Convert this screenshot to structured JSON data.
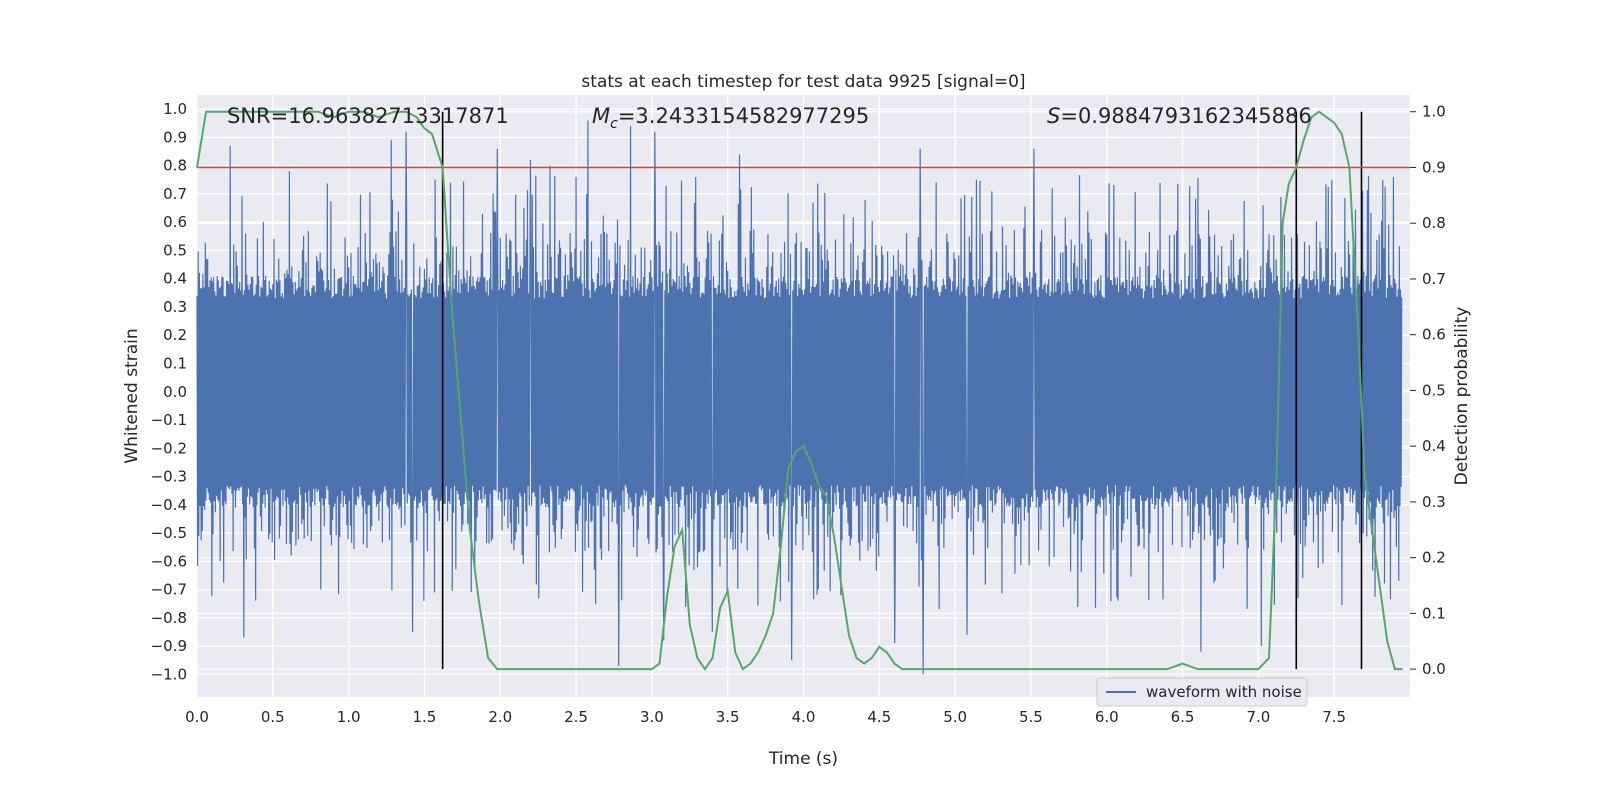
{
  "chart_data": {
    "type": "line",
    "title": "stats at each timestep for test data 9925 [signal=0]",
    "xlabel": "Time (s)",
    "ylabel_left": "Whitened strain",
    "ylabel_right": "Detection probability",
    "xlim": [
      0.0,
      8.0
    ],
    "ylim_left": [
      -1.08,
      1.05
    ],
    "ylim_right": [
      -0.05,
      1.03
    ],
    "x_ticks": [
      0.0,
      0.5,
      1.0,
      1.5,
      2.0,
      2.5,
      3.0,
      3.5,
      4.0,
      4.5,
      5.0,
      5.5,
      6.0,
      6.5,
      7.0,
      7.5
    ],
    "x_tick_labels": [
      "0.0",
      "0.5",
      "1.0",
      "1.5",
      "2.0",
      "2.5",
      "3.0",
      "3.5",
      "4.0",
      "4.5",
      "5.0",
      "5.5",
      "6.0",
      "6.5",
      "7.0",
      "7.5"
    ],
    "y_left_ticks": [
      1.0,
      0.9,
      0.8,
      0.7,
      0.6,
      0.5,
      0.4,
      0.3,
      0.2,
      0.1,
      0.0,
      -0.1,
      -0.2,
      -0.3,
      -0.4,
      -0.5,
      -0.6,
      -0.7,
      -0.8,
      -0.9,
      -1.0
    ],
    "y_left_tick_labels": [
      "1.0",
      "0.9",
      "0.8",
      "0.7",
      "0.6",
      "0.5",
      "0.4",
      "0.3",
      "0.2",
      "0.1",
      "0.0",
      "−0.1",
      "−0.2",
      "−0.3",
      "−0.4",
      "−0.5",
      "−0.6",
      "−0.7",
      "−0.8",
      "−0.9",
      "−1.0"
    ],
    "y_right_ticks": [
      1.0,
      0.9,
      0.8,
      0.7,
      0.6,
      0.5,
      0.4,
      0.3,
      0.2,
      0.1,
      0.0
    ],
    "y_right_tick_labels": [
      "1.0",
      "0.9",
      "0.8",
      "0.7",
      "0.6",
      "0.5",
      "0.4",
      "0.3",
      "0.2",
      "0.1",
      "0.0"
    ],
    "annotations": {
      "snr": "SNR=16.96382713317871",
      "mc_symbol": "M",
      "mc_sub": "c",
      "mc_value": "=3.2433154582977295",
      "s_symbol": "S",
      "s_value": "=0.9884793162345886"
    },
    "legend": {
      "label": "waveform with noise",
      "position": "lower-right"
    },
    "threshold": {
      "value": 0.9,
      "axis": "right",
      "color": "#c44e52"
    },
    "detection_boundaries_s": [
      1.62,
      7.25,
      7.68
    ],
    "strain_series": {
      "name": "waveform with noise",
      "color": "#4c72b0",
      "sample_rate_hz": 256,
      "core_amplitude": 0.36,
      "spike_peaks": [
        {
          "t": 0.22,
          "v": 0.87
        },
        {
          "t": 0.31,
          "v": -0.87
        },
        {
          "t": 0.61,
          "v": 0.78
        },
        {
          "t": 1.38,
          "v": 0.92
        },
        {
          "t": 1.42,
          "v": -0.85
        },
        {
          "t": 2.2,
          "v": 0.82
        },
        {
          "t": 2.33,
          "v": 0.8
        },
        {
          "t": 2.58,
          "v": 0.96
        },
        {
          "t": 2.78,
          "v": -0.97
        },
        {
          "t": 2.86,
          "v": 0.94
        },
        {
          "t": 3.02,
          "v": 0.92
        },
        {
          "t": 3.08,
          "v": -0.88
        },
        {
          "t": 3.4,
          "v": -0.85
        },
        {
          "t": 3.92,
          "v": -0.95
        },
        {
          "t": 4.6,
          "v": -0.89
        },
        {
          "t": 4.77,
          "v": 0.86
        },
        {
          "t": 4.79,
          "v": -1.0
        },
        {
          "t": 5.08,
          "v": -0.86
        },
        {
          "t": 5.52,
          "v": 0.86
        },
        {
          "t": 6.62,
          "v": -0.92
        },
        {
          "t": 7.02,
          "v": -0.9
        },
        {
          "t": 1.28,
          "v": 0.89
        },
        {
          "t": 1.98,
          "v": 0.86
        },
        {
          "t": 3.58,
          "v": 0.84
        }
      ]
    },
    "probability_series": {
      "name": "detection probability",
      "color": "#55a868",
      "t": [
        0.0,
        0.06,
        0.12,
        0.2,
        0.3,
        0.4,
        0.5,
        0.6,
        0.7,
        0.8,
        0.9,
        1.0,
        1.1,
        1.2,
        1.3,
        1.38,
        1.45,
        1.5,
        1.55,
        1.62,
        1.68,
        1.74,
        1.8,
        1.86,
        1.92,
        1.98,
        2.05,
        2.15,
        2.3,
        2.45,
        2.6,
        2.75,
        2.9,
        3.0,
        3.05,
        3.1,
        3.15,
        3.2,
        3.25,
        3.3,
        3.35,
        3.4,
        3.45,
        3.5,
        3.55,
        3.6,
        3.65,
        3.7,
        3.75,
        3.8,
        3.85,
        3.9,
        3.95,
        4.0,
        4.05,
        4.1,
        4.15,
        4.2,
        4.25,
        4.3,
        4.35,
        4.4,
        4.45,
        4.5,
        4.55,
        4.6,
        4.65,
        4.7,
        4.75,
        4.8,
        4.9,
        5.0,
        5.2,
        5.4,
        5.5,
        5.6,
        5.8,
        6.0,
        6.2,
        6.4,
        6.5,
        6.6,
        6.8,
        7.0,
        7.07,
        7.12,
        7.16,
        7.2,
        7.25,
        7.3,
        7.35,
        7.4,
        7.45,
        7.5,
        7.55,
        7.6,
        7.66,
        7.7,
        7.75,
        7.8,
        7.85,
        7.9,
        7.95
      ],
      "p": [
        0.9,
        1.0,
        1.0,
        1.0,
        1.0,
        1.0,
        1.0,
        1.0,
        1.0,
        1.0,
        0.99,
        1.0,
        1.0,
        0.99,
        1.0,
        1.0,
        0.99,
        0.97,
        0.96,
        0.9,
        0.65,
        0.45,
        0.25,
        0.12,
        0.02,
        0.0,
        0.0,
        0.0,
        0.0,
        0.0,
        0.0,
        0.0,
        0.0,
        0.0,
        0.01,
        0.13,
        0.22,
        0.25,
        0.08,
        0.02,
        0.0,
        0.02,
        0.11,
        0.14,
        0.03,
        0.0,
        0.01,
        0.03,
        0.06,
        0.1,
        0.22,
        0.36,
        0.39,
        0.4,
        0.37,
        0.33,
        0.31,
        0.24,
        0.15,
        0.06,
        0.02,
        0.01,
        0.02,
        0.04,
        0.03,
        0.01,
        0.0,
        0.0,
        0.0,
        0.0,
        0.0,
        0.0,
        0.0,
        0.0,
        0.0,
        0.0,
        0.0,
        0.0,
        0.0,
        0.0,
        0.01,
        0.0,
        0.0,
        0.0,
        0.02,
        0.35,
        0.8,
        0.87,
        0.9,
        0.95,
        0.99,
        1.0,
        0.99,
        0.98,
        0.96,
        0.9,
        0.6,
        0.35,
        0.25,
        0.15,
        0.05,
        0.0,
        0.0
      ]
    }
  }
}
